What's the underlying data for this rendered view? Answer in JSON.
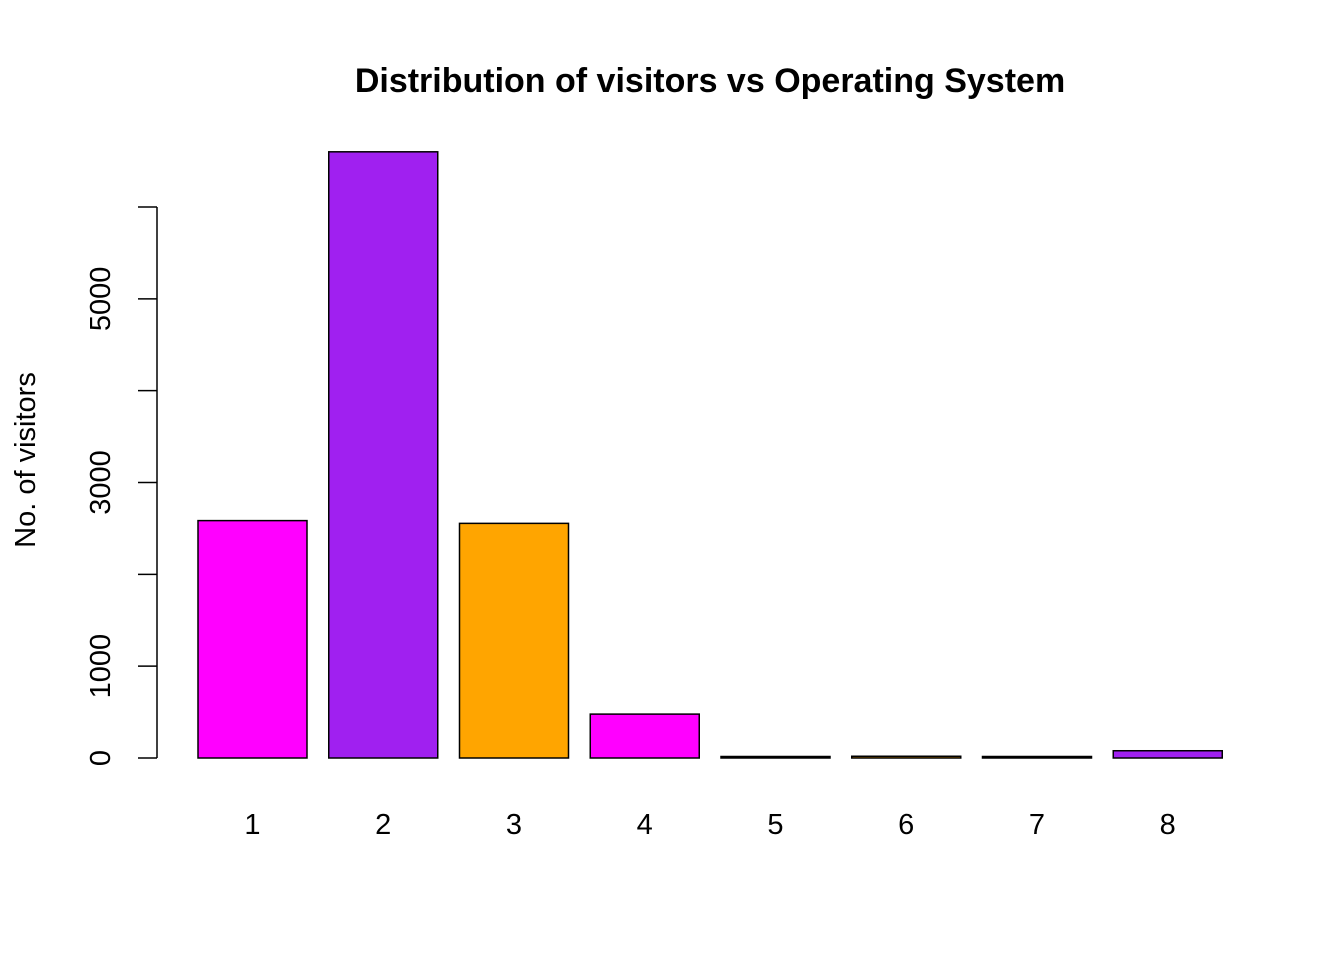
{
  "chart_data": {
    "type": "bar",
    "title": "Distribution of visitors vs Operating System",
    "xlabel": "",
    "ylabel": "No. of visitors",
    "categories": [
      "1",
      "2",
      "3",
      "4",
      "5",
      "6",
      "7",
      "8"
    ],
    "values": [
      2585,
      6601,
      2555,
      478,
      6,
      19,
      7,
      79
    ],
    "colors": [
      "#FF00FF",
      "#A020F0",
      "#FFA500",
      "#FF00FF",
      "#A020F0",
      "#FFA500",
      "#FF00FF",
      "#A020F0"
    ],
    "y_ticks": [
      0,
      1000,
      2000,
      3000,
      4000,
      5000,
      6000
    ],
    "y_tick_labels": [
      "0",
      "1000",
      "",
      "3000",
      "",
      "5000",
      ""
    ],
    "ylim": [
      0,
      6601
    ],
    "grid": false,
    "legend": "none"
  }
}
